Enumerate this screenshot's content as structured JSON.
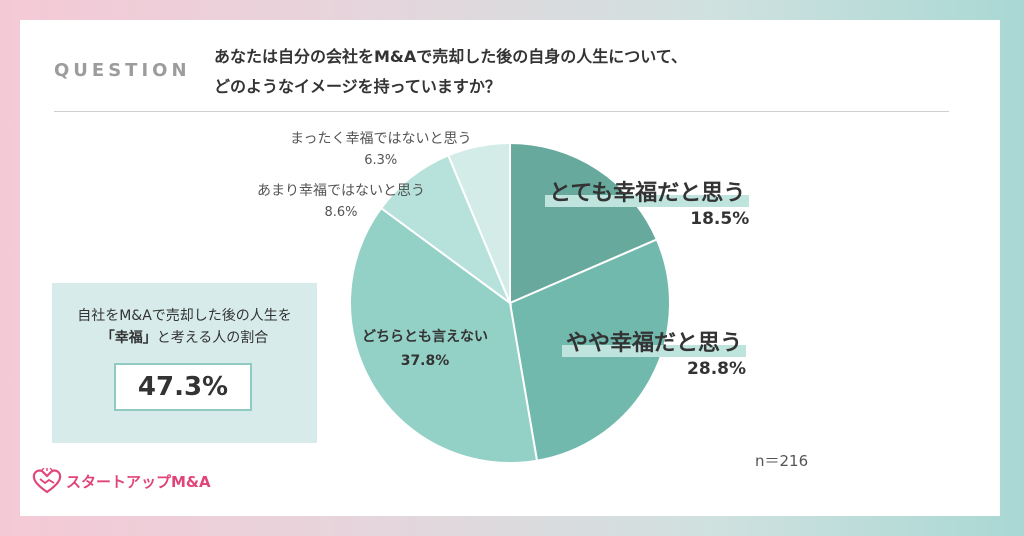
{
  "question": {
    "label": "QUESTION",
    "line1": "あなたは自分の会社をM&Aで売却した後の自身の人生について、",
    "line2": "どのようなイメージを持っていますか？"
  },
  "summary": {
    "line1": "自社をM&Aで売却した後の人生を",
    "bracket_open": "「",
    "emphasis": "幸福",
    "bracket_close": "」",
    "line2_rest": "と考える人の割合",
    "value": "47.3%"
  },
  "n_label": "n＝216",
  "logo_text": "スタートアップM&A",
  "colors": [
    "#67a99d",
    "#72b9ad",
    "#93d0c6",
    "#b6e2db",
    "#d3ece8"
  ],
  "chart_data": {
    "type": "pie",
    "start": "12 o'clock, clockwise",
    "slices": [
      {
        "label": "とても幸福だと思う",
        "value": 18.5,
        "pct": "18.5%"
      },
      {
        "label": "やや幸福だと思う",
        "value": 28.8,
        "pct": "28.8%"
      },
      {
        "label": "どちらとも言えない",
        "value": 37.8,
        "pct": "37.8%"
      },
      {
        "label": "あまり幸福ではないと思う",
        "value": 8.6,
        "pct": "8.6%"
      },
      {
        "label": "まったく幸福ではないと思う",
        "value": 6.3,
        "pct": "6.3%"
      }
    ]
  }
}
